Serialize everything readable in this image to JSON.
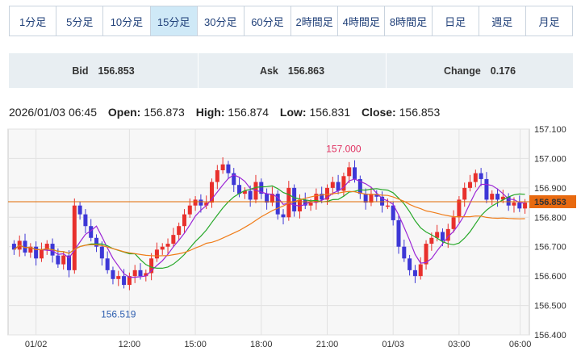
{
  "tabs": [
    {
      "label": "1分足",
      "active": false
    },
    {
      "label": "5分足",
      "active": false
    },
    {
      "label": "10分足",
      "active": false
    },
    {
      "label": "15分足",
      "active": true
    },
    {
      "label": "30分足",
      "active": false
    },
    {
      "label": "60分足",
      "active": false
    },
    {
      "label": "2時間足",
      "active": false
    },
    {
      "label": "4時間足",
      "active": false
    },
    {
      "label": "8時間足",
      "active": false
    },
    {
      "label": "日足",
      "active": false
    },
    {
      "label": "週足",
      "active": false
    },
    {
      "label": "月足",
      "active": false
    }
  ],
  "quote": {
    "bid_label": "Bid",
    "bid_value": "156.853",
    "ask_label": "Ask",
    "ask_value": "156.863",
    "change_label": "Change",
    "change_value": "0.176"
  },
  "ohlc": {
    "datetime": "2026/01/03 06:45",
    "open_label": "Open:",
    "open_value": "156.873",
    "high_label": "High:",
    "high_value": "156.874",
    "low_label": "Low:",
    "low_value": "156.831",
    "close_label": "Close:",
    "close_value": "156.853"
  },
  "chart_data": {
    "type": "candlestick",
    "ylim": [
      156.4,
      157.1
    ],
    "y_ticks": [
      "157.100",
      "157.000",
      "156.900",
      "156.800",
      "156.700",
      "156.600",
      "156.500",
      "156.400"
    ],
    "x_ticks": [
      "01/02",
      "12:00",
      "15:00",
      "18:00",
      "21:00",
      "01/03",
      "03:00",
      "06:00"
    ],
    "current_price_label": "156.853",
    "current_price": 156.853,
    "annotations": [
      {
        "text": "157.000",
        "value": 157.0,
        "position": "above-high"
      },
      {
        "text": "156.519",
        "value": 156.519,
        "position": "below-low"
      }
    ],
    "colors": {
      "up": "#e8302c",
      "down": "#3d37d6",
      "ma_short": "#9c27d6",
      "ma_mid": "#27a829",
      "ma_long": "#f07d1a",
      "price_line": "#e06a00",
      "price_label_bg": "#e86a10"
    },
    "closes": [
      156.69,
      156.72,
      156.68,
      156.7,
      156.66,
      156.69,
      156.71,
      156.67,
      156.64,
      156.67,
      156.62,
      156.84,
      156.81,
      156.77,
      156.73,
      156.7,
      156.66,
      156.62,
      156.59,
      156.6,
      156.57,
      156.6,
      156.62,
      156.6,
      156.61,
      156.66,
      156.69,
      156.7,
      156.71,
      156.74,
      156.77,
      156.81,
      156.84,
      156.86,
      156.84,
      156.85,
      156.92,
      156.96,
      156.98,
      156.95,
      156.91,
      156.88,
      156.89,
      156.86,
      156.92,
      156.88,
      156.85,
      156.88,
      156.81,
      156.8,
      156.9,
      156.82,
      156.86,
      156.84,
      156.85,
      156.88,
      156.86,
      156.9,
      156.92,
      156.89,
      156.94,
      156.97,
      156.93,
      156.88,
      156.85,
      156.88,
      156.87,
      156.84,
      156.84,
      156.79,
      156.7,
      156.66,
      156.62,
      156.6,
      156.64,
      156.71,
      156.73,
      156.75,
      156.72,
      156.76,
      156.8,
      156.86,
      156.9,
      156.92,
      156.95,
      156.93,
      156.86,
      156.88,
      156.86,
      156.87,
      156.84,
      156.85,
      156.83,
      156.85
    ]
  }
}
